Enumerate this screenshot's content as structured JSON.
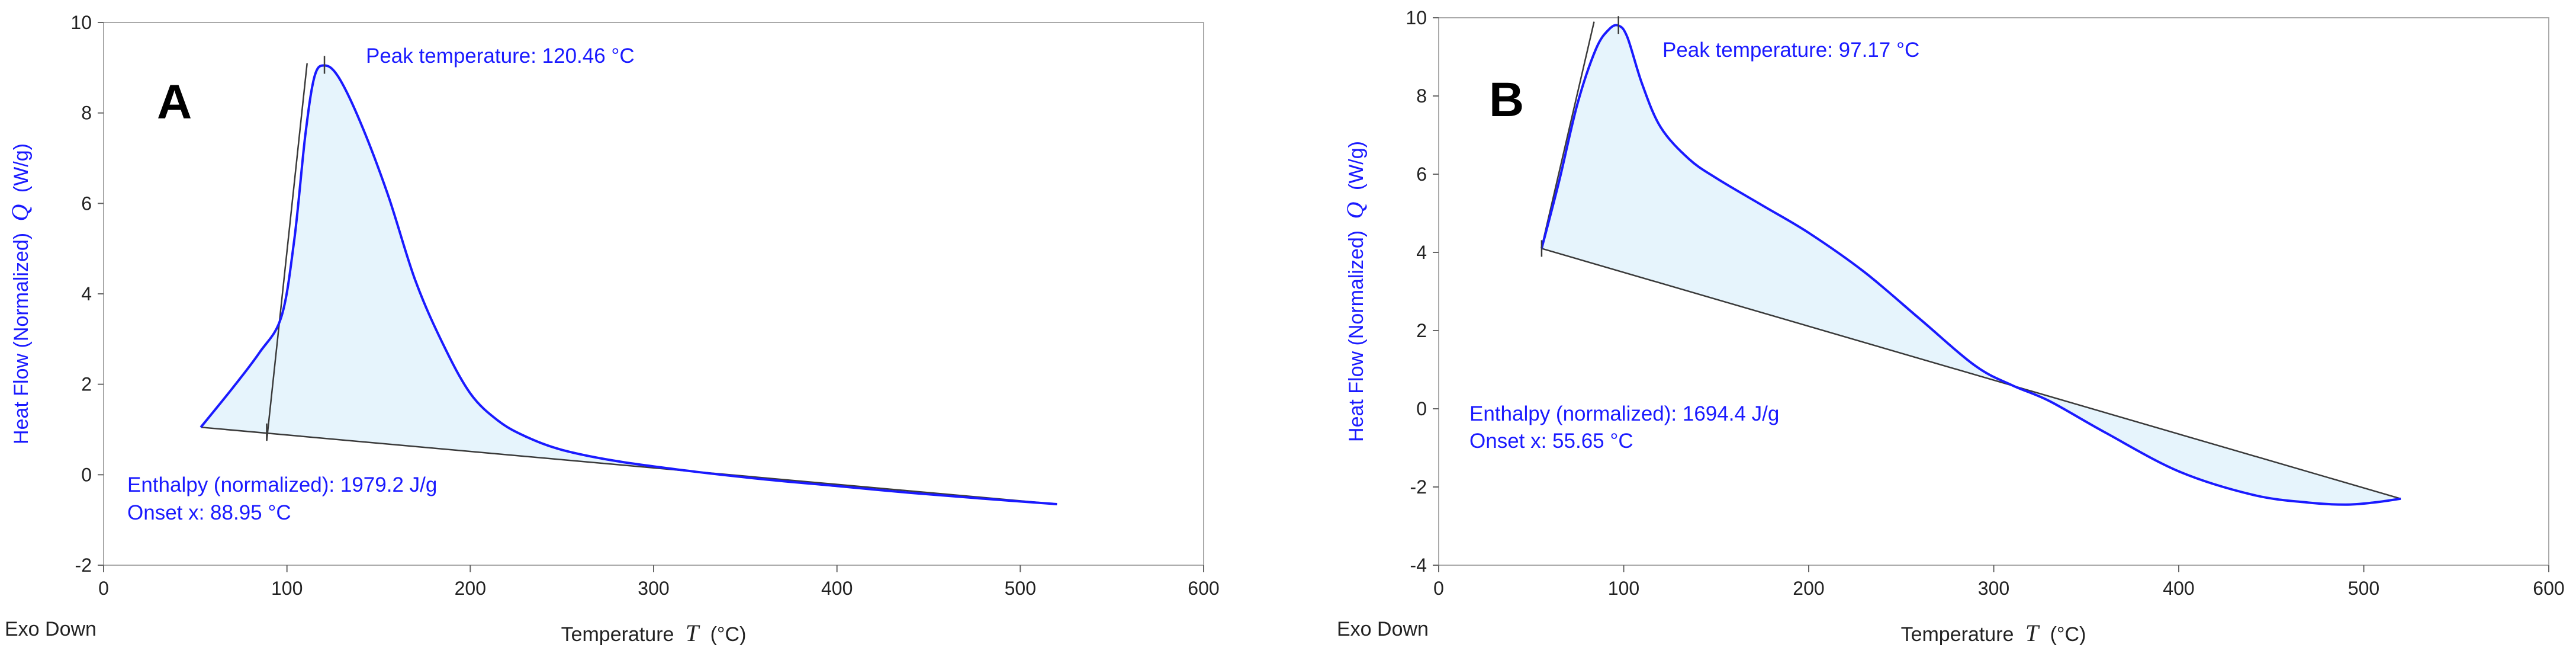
{
  "colors": {
    "curve": "#1a1aff",
    "baseline": "#3a3a3a",
    "fill": "#e6f4fc",
    "text_blue": "#1a1aff",
    "text_dark": "#222222"
  },
  "chart_data": [
    {
      "type": "line",
      "panel_label": "A",
      "title": "",
      "xlabel_prefix": "Temperature",
      "xlabel_symbol": "T",
      "xlabel_unit": "(°C)",
      "ylabel_prefix": "Heat Flow (Normalized)",
      "ylabel_symbol": "Q",
      "ylabel_unit": "(W/g)",
      "xlim": [
        0,
        600
      ],
      "ylim": [
        -2,
        10
      ],
      "xticks": [
        "0",
        "100",
        "200",
        "300",
        "400",
        "500",
        "600"
      ],
      "yticks": [
        "-2",
        "0",
        "2",
        "4",
        "6",
        "8",
        "10"
      ],
      "corner_label": "Exo Down",
      "series": [
        {
          "name": "Heat flow",
          "x": [
            53,
            70,
            85,
            97,
            104,
            110,
            115,
            120.46,
            128,
            140,
            155,
            170,
            185,
            200,
            215,
            230,
            250,
            280,
            320,
            360,
            400,
            440,
            480,
            520
          ],
          "y": [
            1.05,
            1.9,
            2.7,
            3.5,
            5.2,
            7.5,
            8.8,
            9.05,
            8.8,
            7.8,
            6.2,
            4.3,
            2.9,
            1.8,
            1.2,
            0.85,
            0.55,
            0.3,
            0.08,
            -0.1,
            -0.25,
            -0.4,
            -0.53,
            -0.65
          ]
        }
      ],
      "baseline": {
        "x": [
          53,
          520
        ],
        "y": [
          1.05,
          -0.65
        ]
      },
      "tangent": {
        "x": [
          88.95,
          111
        ],
        "y": [
          0.75,
          9.1
        ]
      },
      "peak_marker": {
        "x": 120.46,
        "y": 9.05
      },
      "onset_marker": {
        "x": 88.95,
        "y": 0.95
      },
      "annotations": {
        "peak": "Peak temperature: 120.46 °C",
        "enthalpy": "Enthalpy (normalized): 1979.2 J/g",
        "onset": "Onset x: 88.95 °C"
      }
    },
    {
      "type": "line",
      "panel_label": "B",
      "title": "",
      "xlabel_prefix": "Temperature",
      "xlabel_symbol": "T",
      "xlabel_unit": "(°C)",
      "ylabel_prefix": "Heat Flow (Normalized)",
      "ylabel_symbol": "Q",
      "ylabel_unit": "(W/g)",
      "xlim": [
        0,
        600
      ],
      "ylim": [
        -4,
        10
      ],
      "xticks": [
        "0",
        "100",
        "200",
        "300",
        "400",
        "500",
        "600"
      ],
      "yticks": [
        "-4",
        "-2",
        "0",
        "2",
        "4",
        "6",
        "8",
        "10"
      ],
      "corner_label": "Exo Down",
      "series": [
        {
          "name": "Heat flow",
          "x": [
            55.65,
            65,
            75,
            85,
            92,
            97.17,
            102,
            110,
            120,
            135,
            150,
            175,
            200,
            230,
            260,
            290,
            310,
            330,
            360,
            400,
            440,
            470,
            490,
            505,
            520
          ],
          "y": [
            4.1,
            5.8,
            7.8,
            9.2,
            9.7,
            9.8,
            9.5,
            8.3,
            7.2,
            6.4,
            5.9,
            5.2,
            4.5,
            3.5,
            2.3,
            1.1,
            0.6,
            0.2,
            -0.6,
            -1.6,
            -2.2,
            -2.4,
            -2.45,
            -2.4,
            -2.3
          ]
        }
      ],
      "baseline": {
        "x": [
          55.65,
          520
        ],
        "y": [
          4.1,
          -2.3
        ]
      },
      "tangent": {
        "x": [
          56,
          84
        ],
        "y": [
          4.2,
          9.9
        ]
      },
      "peak_marker": {
        "x": 97.17,
        "y": 9.8
      },
      "onset_marker": {
        "x": 55.65,
        "y": 4.1
      },
      "annotations": {
        "peak": "Peak temperature: 97.17 °C",
        "enthalpy": "Enthalpy (normalized): 1694.4 J/g",
        "onset": "Onset x: 55.65 °C"
      }
    }
  ]
}
